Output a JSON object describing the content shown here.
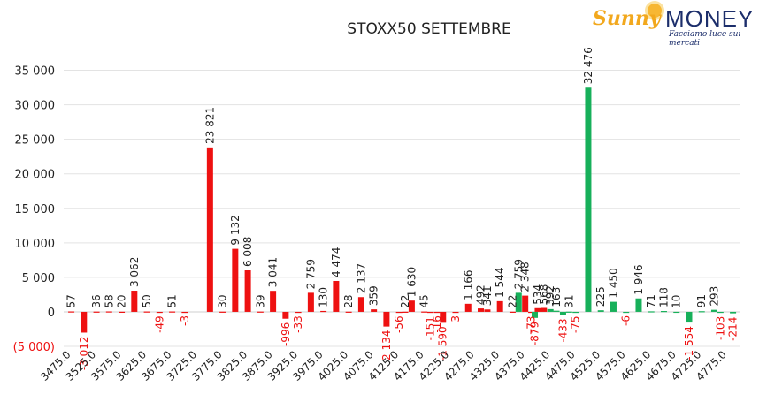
{
  "logo": {
    "brand_left": "Sunny",
    "brand_right": "MONEY",
    "tagline": "Facciamo luce sui mercati"
  },
  "colors": {
    "calls": "#ee1111",
    "puts": "#17b05a",
    "negative_label": "#ee1111",
    "positive_label": "#222222"
  },
  "chart_data": {
    "type": "bar",
    "title": "STOXX50 SETTEMBRE",
    "xlabel": "",
    "ylabel": "",
    "ylim": [
      -5000,
      37500
    ],
    "yticks": [
      -5000,
      0,
      5000,
      10000,
      15000,
      20000,
      25000,
      30000,
      35000
    ],
    "ytick_labels": [
      "(5 000)",
      "0",
      "5 000",
      "10 000",
      "15 000",
      "20 000",
      "25 000",
      "30 000",
      "35 000"
    ],
    "x_tick_labels": [
      "3475.0",
      "3525.0",
      "3575.0",
      "3625.0",
      "3675.0",
      "3725.0",
      "3775.0",
      "3825.0",
      "3875.0",
      "3925.0",
      "3975.0",
      "4025.0",
      "4075.0",
      "4125.0",
      "4175.0",
      "4225.0",
      "4275.0",
      "4325.0",
      "4375.0",
      "4425.0",
      "4475.0",
      "4525.0",
      "4575.0",
      "4625.0",
      "4675.0",
      "4725.0",
      "4775.0"
    ],
    "grid": true,
    "legend": "none",
    "series": [
      {
        "color": "#ee1111",
        "points": [
          {
            "x": 3475,
            "y": 57
          },
          {
            "x": 3500,
            "y": -3012
          },
          {
            "x": 3525,
            "y": 36
          },
          {
            "x": 3550,
            "y": 58
          },
          {
            "x": 3575,
            "y": 20
          },
          {
            "x": 3600,
            "y": 3062
          },
          {
            "x": 3625,
            "y": 50
          },
          {
            "x": 3650,
            "y": -49
          },
          {
            "x": 3675,
            "y": 51
          },
          {
            "x": 3700,
            "y": -3
          },
          {
            "x": 3750,
            "y": 23821
          },
          {
            "x": 3775,
            "y": 30
          },
          {
            "x": 3800,
            "y": 9132
          },
          {
            "x": 3825,
            "y": 6008
          },
          {
            "x": 3850,
            "y": 39
          },
          {
            "x": 3875,
            "y": 3041
          },
          {
            "x": 3900,
            "y": -996
          },
          {
            "x": 3925,
            "y": -33
          },
          {
            "x": 3950,
            "y": 2759
          },
          {
            "x": 3975,
            "y": 130
          },
          {
            "x": 4000,
            "y": 4474
          },
          {
            "x": 4025,
            "y": 28
          },
          {
            "x": 4050,
            "y": 2137
          },
          {
            "x": 4075,
            "y": 359
          },
          {
            "x": 4100,
            "y": -2134
          },
          {
            "x": 4125,
            "y": -56
          },
          {
            "x": 4137,
            "y": 22
          },
          {
            "x": 4150,
            "y": 1630
          },
          {
            "x": 4175,
            "y": 45
          },
          {
            "x": 4187,
            "y": -151
          },
          {
            "x": 4200,
            "y": -16
          },
          {
            "x": 4212,
            "y": -1590
          },
          {
            "x": 4237,
            "y": -3
          },
          {
            "x": 4262,
            "y": 1166
          },
          {
            "x": 4287,
            "y": 492
          },
          {
            "x": 4300,
            "y": 341
          },
          {
            "x": 4325,
            "y": 1544
          },
          {
            "x": 4350,
            "y": 22
          },
          {
            "x": 4375,
            "y": 2348
          },
          {
            "x": 4387,
            "y": -73
          },
          {
            "x": 4400,
            "y": 534
          },
          {
            "x": 4412,
            "y": 568
          }
        ]
      },
      {
        "color": "#17b05a",
        "points": [
          {
            "x": 4362,
            "y": 2759
          },
          {
            "x": 4394,
            "y": -879
          },
          {
            "x": 4425,
            "y": 392
          },
          {
            "x": 4437,
            "y": 163
          },
          {
            "x": 4450,
            "y": -433
          },
          {
            "x": 4462,
            "y": 31
          },
          {
            "x": 4475,
            "y": -75
          },
          {
            "x": 4500,
            "y": 32476
          },
          {
            "x": 4525,
            "y": 225
          },
          {
            "x": 4550,
            "y": 1450
          },
          {
            "x": 4575,
            "y": -6
          },
          {
            "x": 4600,
            "y": 1946
          },
          {
            "x": 4625,
            "y": 71
          },
          {
            "x": 4650,
            "y": 118
          },
          {
            "x": 4675,
            "y": 10
          },
          {
            "x": 4700,
            "y": -1554
          },
          {
            "x": 4725,
            "y": 91
          },
          {
            "x": 4750,
            "y": 293
          },
          {
            "x": 4762,
            "y": -103
          },
          {
            "x": 4787,
            "y": -214
          }
        ]
      }
    ]
  }
}
